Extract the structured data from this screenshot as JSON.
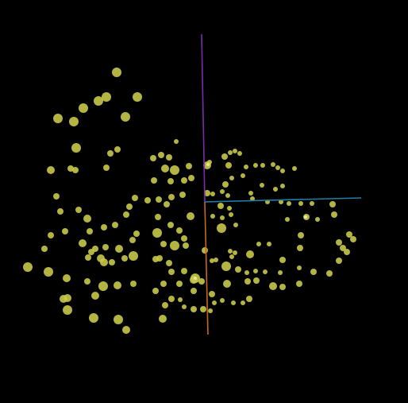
{
  "scene": {
    "background_color": "#000000",
    "point_color": "#c8c84a",
    "point_highlight_color": "#e9e98a",
    "axes": {
      "x_color": "#1f7fa6",
      "y_color": "#7b2bb0",
      "z_color": "#c26a1a"
    }
  }
}
